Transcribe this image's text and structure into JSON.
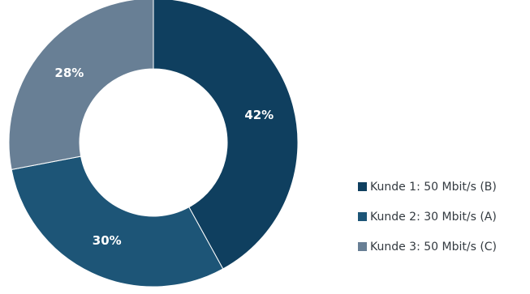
{
  "chart_data": {
    "type": "pie",
    "variant": "donut",
    "title": "",
    "series": [
      {
        "name": "Kunde 1: 50 Mbit/s (B)",
        "value": 42,
        "label": "42%",
        "color": "#0f3f5f"
      },
      {
        "name": "Kunde 2: 30 Mbit/s (A)",
        "value": 30,
        "label": "30%",
        "color": "#1d5577"
      },
      {
        "name": "Kunde 3: 50 Mbit/s (C)",
        "value": 28,
        "label": "28%",
        "color": "#687f95"
      }
    ],
    "legend": {
      "position": "bottom-right"
    },
    "start_angle": "12 o'clock",
    "direction": "clockwise"
  }
}
